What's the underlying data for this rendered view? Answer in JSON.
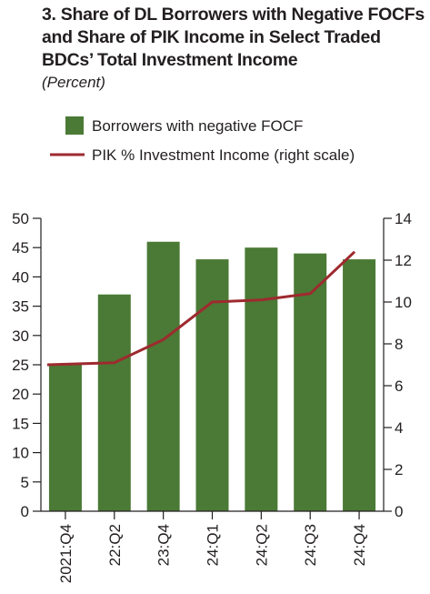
{
  "title": {
    "line1": "3. Share of DL Borrowers with Negative FOCFs",
    "line2": "and Share of PIK Income in  Select Traded",
    "line3": "BDCs’ Total Investment Income",
    "subtitle": "(Percent)"
  },
  "colors": {
    "bar": "#4a7a35",
    "line": "#9e2a2f",
    "axis": "#231f20"
  },
  "chart_data": {
    "type": "bar",
    "categories": [
      "2021:Q4",
      "22:Q2",
      "23:Q4",
      "24:Q1",
      "24:Q2",
      "24:Q3",
      "24:Q4"
    ],
    "series": [
      {
        "name": "Borrowers with negative FOCF",
        "type": "bar",
        "axis": "left",
        "values": [
          25,
          37,
          46,
          43,
          45,
          44,
          43
        ]
      },
      {
        "name": "PIK % Investment Income (right scale)",
        "type": "line",
        "axis": "right",
        "values": [
          7.0,
          7.1,
          8.2,
          10.0,
          10.1,
          10.4,
          12.4
        ]
      }
    ],
    "left_axis": {
      "min": 0,
      "max": 50,
      "ticks": [
        0,
        5,
        10,
        15,
        20,
        25,
        30,
        35,
        40,
        45,
        50
      ]
    },
    "right_axis": {
      "min": 0,
      "max": 14,
      "ticks": [
        0,
        2,
        4,
        6,
        8,
        10,
        12,
        14
      ]
    },
    "legend_placement": "top",
    "grid": false
  }
}
